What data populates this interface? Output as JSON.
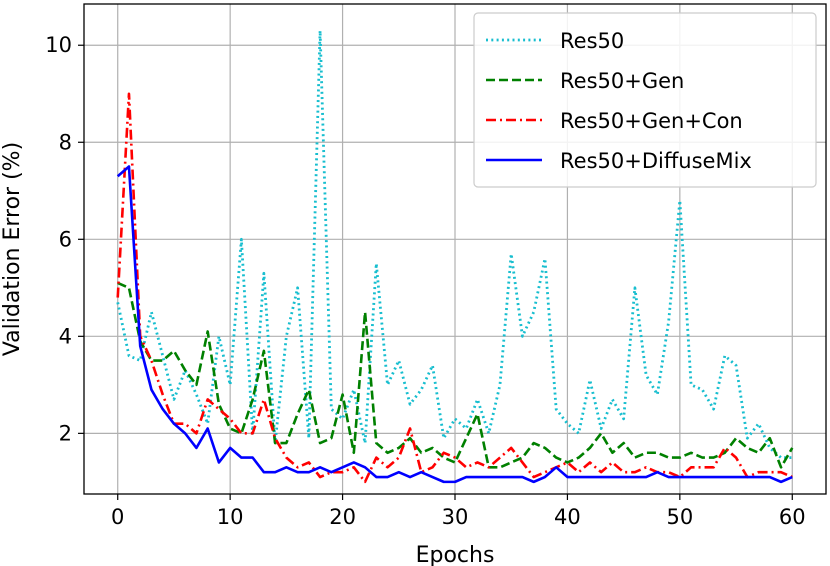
{
  "chart_data": {
    "type": "line",
    "title": "",
    "xlabel": "Epochs",
    "ylabel": "Validation Error (%)",
    "xlim": [
      -3,
      63
    ],
    "ylim": [
      0.75,
      10.85
    ],
    "xticks": [
      0,
      10,
      20,
      30,
      40,
      50,
      60
    ],
    "yticks": [
      2,
      4,
      6,
      8,
      10
    ],
    "grid": true,
    "legend_position": "top-right",
    "x": [
      0,
      1,
      2,
      3,
      4,
      5,
      6,
      7,
      8,
      9,
      10,
      11,
      12,
      13,
      14,
      15,
      16,
      17,
      18,
      19,
      20,
      21,
      22,
      23,
      24,
      25,
      26,
      27,
      28,
      29,
      30,
      31,
      32,
      33,
      34,
      35,
      36,
      37,
      38,
      39,
      40,
      41,
      42,
      43,
      44,
      45,
      46,
      47,
      48,
      49,
      50,
      51,
      52,
      53,
      54,
      55,
      56,
      57,
      58,
      59,
      60
    ],
    "series": [
      {
        "name": "Res50",
        "color": "#17becf",
        "dash": "dotted",
        "values": [
          4.7,
          3.6,
          3.5,
          4.5,
          3.6,
          2.7,
          3.3,
          2.8,
          2.2,
          4.0,
          3.0,
          6.0,
          2.0,
          5.3,
          1.8,
          4.0,
          5.0,
          1.9,
          10.3,
          2.5,
          2.3,
          2.9,
          1.8,
          5.5,
          3.0,
          3.5,
          2.6,
          2.9,
          3.4,
          1.9,
          2.3,
          2.1,
          2.7,
          2.0,
          3.0,
          5.7,
          4.0,
          4.5,
          5.6,
          2.5,
          2.2,
          2.0,
          3.1,
          2.1,
          2.7,
          2.3,
          5.0,
          3.2,
          2.8,
          4.3,
          6.8,
          3.0,
          2.9,
          2.5,
          3.6,
          3.4,
          1.9,
          2.2,
          1.7,
          1.5,
          1.5
        ]
      },
      {
        "name": "Res50+Gen",
        "color": "#008000",
        "dash": "dashed",
        "values": [
          5.1,
          5.0,
          3.9,
          3.5,
          3.5,
          3.7,
          3.3,
          3.0,
          4.1,
          2.6,
          2.1,
          2.0,
          2.7,
          3.7,
          1.8,
          1.8,
          2.4,
          2.9,
          1.8,
          1.9,
          2.8,
          1.6,
          4.5,
          1.8,
          1.6,
          1.7,
          1.9,
          1.6,
          1.7,
          1.5,
          1.4,
          1.9,
          2.4,
          1.3,
          1.3,
          1.4,
          1.5,
          1.8,
          1.7,
          1.5,
          1.4,
          1.5,
          1.7,
          2.0,
          1.6,
          1.8,
          1.5,
          1.6,
          1.6,
          1.5,
          1.5,
          1.6,
          1.5,
          1.5,
          1.6,
          1.9,
          1.7,
          1.6,
          1.9,
          1.3,
          1.7
        ]
      },
      {
        "name": "Res50+Gen+Con",
        "color": "#ff0000",
        "dash": "dashdot",
        "values": [
          4.8,
          9.0,
          4.0,
          3.5,
          2.8,
          2.2,
          2.2,
          2.0,
          2.7,
          2.5,
          2.3,
          2.0,
          2.0,
          2.7,
          1.9,
          1.5,
          1.3,
          1.4,
          1.1,
          1.2,
          1.2,
          1.3,
          1.0,
          1.5,
          1.3,
          1.5,
          2.1,
          1.2,
          1.3,
          1.6,
          1.5,
          1.3,
          1.4,
          1.3,
          1.5,
          1.7,
          1.4,
          1.1,
          1.2,
          1.3,
          1.4,
          1.2,
          1.4,
          1.2,
          1.4,
          1.2,
          1.2,
          1.3,
          1.2,
          1.2,
          1.1,
          1.3,
          1.3,
          1.3,
          1.7,
          1.5,
          1.1,
          1.2,
          1.2,
          1.2,
          1.1
        ]
      },
      {
        "name": "Res50+DiffuseMix",
        "color": "#0000ff",
        "dash": "solid",
        "values": [
          7.3,
          7.5,
          3.8,
          2.9,
          2.5,
          2.2,
          2.0,
          1.7,
          2.1,
          1.4,
          1.7,
          1.5,
          1.5,
          1.2,
          1.2,
          1.3,
          1.2,
          1.2,
          1.3,
          1.2,
          1.3,
          1.4,
          1.3,
          1.1,
          1.1,
          1.2,
          1.1,
          1.2,
          1.1,
          1.0,
          1.0,
          1.1,
          1.1,
          1.1,
          1.1,
          1.1,
          1.1,
          1.0,
          1.1,
          1.3,
          1.1,
          1.1,
          1.1,
          1.1,
          1.1,
          1.1,
          1.1,
          1.1,
          1.2,
          1.1,
          1.1,
          1.1,
          1.1,
          1.1,
          1.1,
          1.1,
          1.1,
          1.1,
          1.1,
          1.0,
          1.1
        ]
      }
    ]
  }
}
